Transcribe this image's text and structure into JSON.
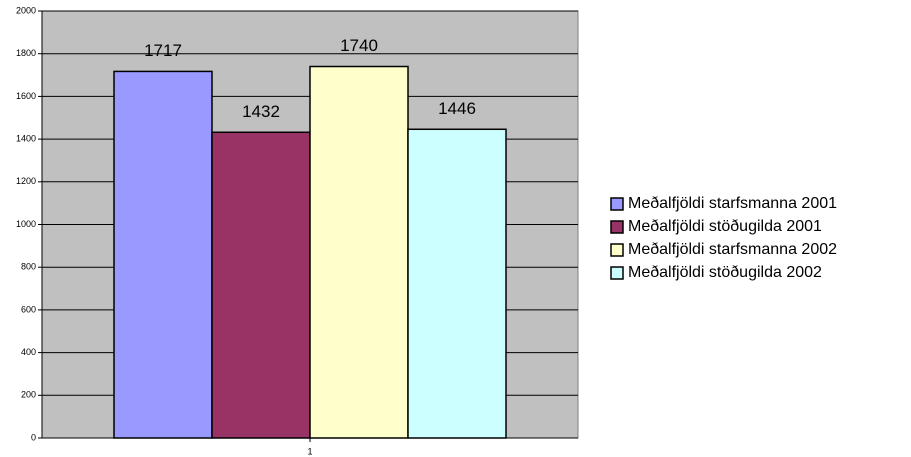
{
  "chart_data": {
    "type": "bar",
    "categories": [
      "1"
    ],
    "series": [
      {
        "name": "Meðalfjöldi starfsmanna 2001",
        "color": "#9999ff",
        "values": [
          1717
        ]
      },
      {
        "name": "Meðalfjöldi stöðugilda 2001",
        "color": "#993366",
        "values": [
          1432
        ]
      },
      {
        "name": "Meðalfjöldi starfsmanna 2002",
        "color": "#ffffcc",
        "values": [
          1740
        ]
      },
      {
        "name": "Meðalfjöldi stöðugilda 2002",
        "color": "#ccffff",
        "values": [
          1446
        ]
      }
    ],
    "ylim": [
      0,
      2000
    ],
    "yticks": [
      0,
      200,
      400,
      600,
      800,
      1000,
      1200,
      1400,
      1600,
      1800,
      2000
    ],
    "grid": true,
    "legend": "right",
    "plot_background": "#c0c0c0"
  }
}
